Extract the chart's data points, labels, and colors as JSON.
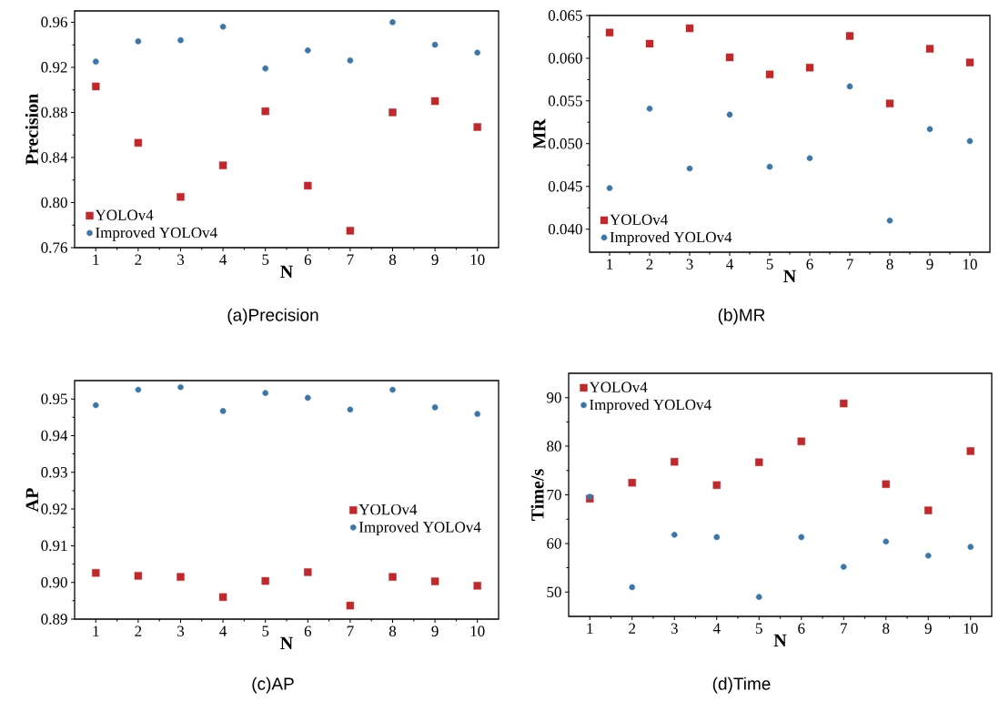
{
  "chart_data": [
    {
      "type": "scatter",
      "xlabel": "N",
      "ylabel": "Precision",
      "annotations": [
        "(a)Precision"
      ],
      "x": [
        1,
        2,
        3,
        4,
        5,
        6,
        7,
        8,
        9,
        10
      ],
      "xlim": [
        0.5,
        10.5
      ],
      "xticks": [
        1,
        2,
        3,
        4,
        5,
        6,
        7,
        8,
        9,
        10
      ],
      "ylim": [
        0.76,
        0.97
      ],
      "yticks": [
        {
          "value": 0.76,
          "label": "0.76"
        },
        {
          "value": 0.8,
          "label": "0.80"
        },
        {
          "value": 0.84,
          "label": "0.84"
        },
        {
          "value": 0.88,
          "label": "0.88"
        },
        {
          "value": 0.92,
          "label": "0.92"
        },
        {
          "value": 0.96,
          "label": "0.96"
        }
      ],
      "legend": "bottom left",
      "series": [
        {
          "name": "YOLOv4",
          "color": "#c0282b",
          "marker": "square",
          "values": [
            0.903,
            0.853,
            0.805,
            0.833,
            0.881,
            0.815,
            0.775,
            0.88,
            0.89,
            0.867
          ]
        },
        {
          "name": "Improved YOLOv4",
          "color": "#3a76a8",
          "marker": "circle",
          "values": [
            0.925,
            0.943,
            0.944,
            0.956,
            0.919,
            0.935,
            0.926,
            0.96,
            0.94,
            0.933
          ]
        }
      ]
    },
    {
      "type": "scatter",
      "xlabel": "N",
      "ylabel": "MR",
      "annotations": [
        "(b)MR"
      ],
      "x": [
        1,
        2,
        3,
        4,
        5,
        6,
        7,
        8,
        9,
        10
      ],
      "xlim": [
        0.5,
        10.5
      ],
      "xticks": [
        1,
        2,
        3,
        4,
        5,
        6,
        7,
        8,
        9,
        10
      ],
      "ylim": [
        0.0373,
        0.065
      ],
      "yticks": [
        {
          "value": 0.04,
          "label": "0.040"
        },
        {
          "value": 0.045,
          "label": "0.045"
        },
        {
          "value": 0.05,
          "label": "0.050"
        },
        {
          "value": 0.055,
          "label": "0.055"
        },
        {
          "value": 0.06,
          "label": "0.060"
        },
        {
          "value": 0.065,
          "label": "0.065"
        }
      ],
      "legend": "bottom left",
      "series": [
        {
          "name": "YOLOv4",
          "color": "#c0282b",
          "marker": "square",
          "values": [
            0.063,
            0.0617,
            0.0635,
            0.0601,
            0.0581,
            0.0589,
            0.0626,
            0.0547,
            0.0611,
            0.0595
          ]
        },
        {
          "name": "Improved YOLOv4",
          "color": "#3a76a8",
          "marker": "circle",
          "values": [
            0.0448,
            0.0541,
            0.0471,
            0.0534,
            0.0473,
            0.0483,
            0.0567,
            0.041,
            0.0517,
            0.0503
          ]
        }
      ]
    },
    {
      "type": "scatter",
      "xlabel": "N",
      "ylabel": "AP",
      "annotations": [
        "(c)AP"
      ],
      "x": [
        1,
        2,
        3,
        4,
        5,
        6,
        7,
        8,
        9,
        10
      ],
      "xlim": [
        0.5,
        10.5
      ],
      "xticks": [
        1,
        2,
        3,
        4,
        5,
        6,
        7,
        8,
        9,
        10
      ],
      "ylim": [
        0.89,
        0.955
      ],
      "yticks": [
        {
          "value": 0.89,
          "label": "0.89"
        },
        {
          "value": 0.9,
          "label": "0.90"
        },
        {
          "value": 0.91,
          "label": "0.91"
        },
        {
          "value": 0.92,
          "label": "0.92"
        },
        {
          "value": 0.93,
          "label": "0.93"
        },
        {
          "value": 0.94,
          "label": "0.94"
        },
        {
          "value": 0.95,
          "label": "0.95"
        }
      ],
      "legend": "right",
      "series": [
        {
          "name": "YOLOv4",
          "color": "#c0282b",
          "marker": "square",
          "values": [
            0.9026,
            0.9018,
            0.9015,
            0.896,
            0.9004,
            0.9028,
            0.8937,
            0.9015,
            0.9003,
            0.8991
          ]
        },
        {
          "name": "Improved YOLOv4",
          "color": "#3a76a8",
          "marker": "circle",
          "values": [
            0.9483,
            0.9525,
            0.9532,
            0.9467,
            0.9516,
            0.9503,
            0.9471,
            0.9525,
            0.9477,
            0.9459
          ]
        }
      ]
    },
    {
      "type": "scatter",
      "xlabel": "N",
      "ylabel": "Time/s",
      "annotations": [
        "(d)Time"
      ],
      "x": [
        1,
        2,
        3,
        4,
        5,
        6,
        7,
        8,
        9,
        10
      ],
      "xlim": [
        0.5,
        10.5
      ],
      "xticks": [
        1,
        2,
        3,
        4,
        5,
        6,
        7,
        8,
        9,
        10
      ],
      "ylim": [
        45,
        95
      ],
      "yticks": [
        50,
        60,
        70,
        80,
        90
      ],
      "legend": "top left",
      "series": [
        {
          "name": "YOLOv4",
          "color": "#c0282b",
          "marker": "square",
          "values": [
            69.2,
            72.5,
            76.8,
            72.0,
            76.7,
            81.0,
            88.8,
            72.2,
            66.8,
            79.0
          ]
        },
        {
          "name": "Improved YOLOv4",
          "color": "#3a76a8",
          "marker": "circle",
          "values": [
            69.6,
            51.0,
            61.8,
            61.3,
            49.0,
            61.3,
            55.2,
            60.4,
            57.5,
            59.3
          ]
        }
      ]
    }
  ]
}
